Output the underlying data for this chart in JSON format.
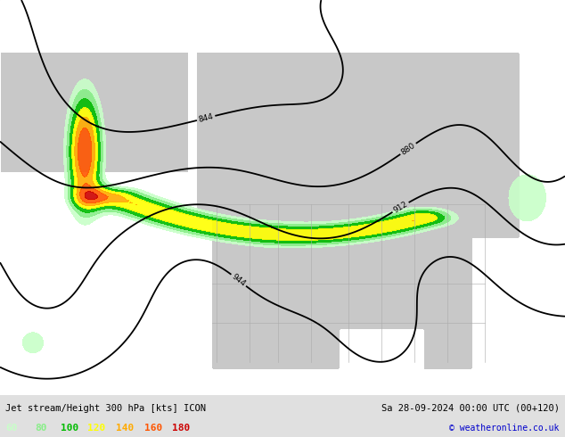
{
  "title_left": "Jet stream/Height 300 hPa [kts] ICON",
  "title_right": "Sa 28-09-2024 00:00 UTC (00+120)",
  "copyright": "© weatheronline.co.uk",
  "legend_values": [
    "60",
    "80",
    "100",
    "120",
    "140",
    "160",
    "180"
  ],
  "legend_colors": [
    "#c8ffc8",
    "#88ee88",
    "#00bb00",
    "#ffff00",
    "#ffaa00",
    "#ff5500",
    "#cc0000"
  ],
  "bg_color": "#e0e0e0",
  "land_color": "#c8c8c8",
  "ocean_color": "#ffffff",
  "contour_color": "#000000",
  "text_color": "#000000",
  "copyright_color": "#0000cc",
  "contour_linewidth": 1.3,
  "jet_colors": [
    "#c8ffc8",
    "#88ee88",
    "#00bb00",
    "#ffff00",
    "#ffaa00",
    "#ff5500",
    "#cc0000"
  ],
  "jet_levels": [
    60,
    80,
    100,
    120,
    140,
    160,
    180,
    300
  ]
}
